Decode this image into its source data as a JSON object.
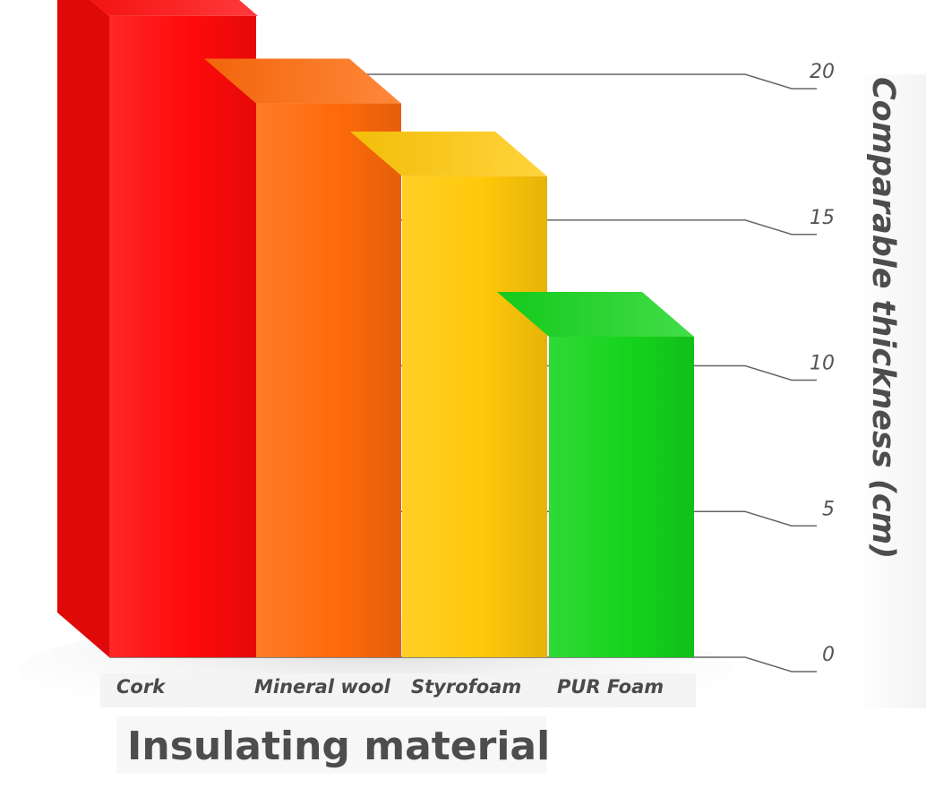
{
  "chart_data": {
    "type": "bar",
    "categories": [
      "Cork",
      "Mineral wool",
      "Styrofoam",
      "PUR Foam"
    ],
    "values": [
      22,
      19,
      16.5,
      11
    ],
    "xlabel": "Insulating material",
    "ylabel": "Comparable thickness (cm)",
    "ylim": [
      0,
      20
    ],
    "yticks": [
      0,
      5,
      10,
      15,
      20
    ],
    "grid": true,
    "style": "3d",
    "colors": [
      "#ff0a0a",
      "#ff6a0a",
      "#ffc80a",
      "#14d41c"
    ]
  }
}
